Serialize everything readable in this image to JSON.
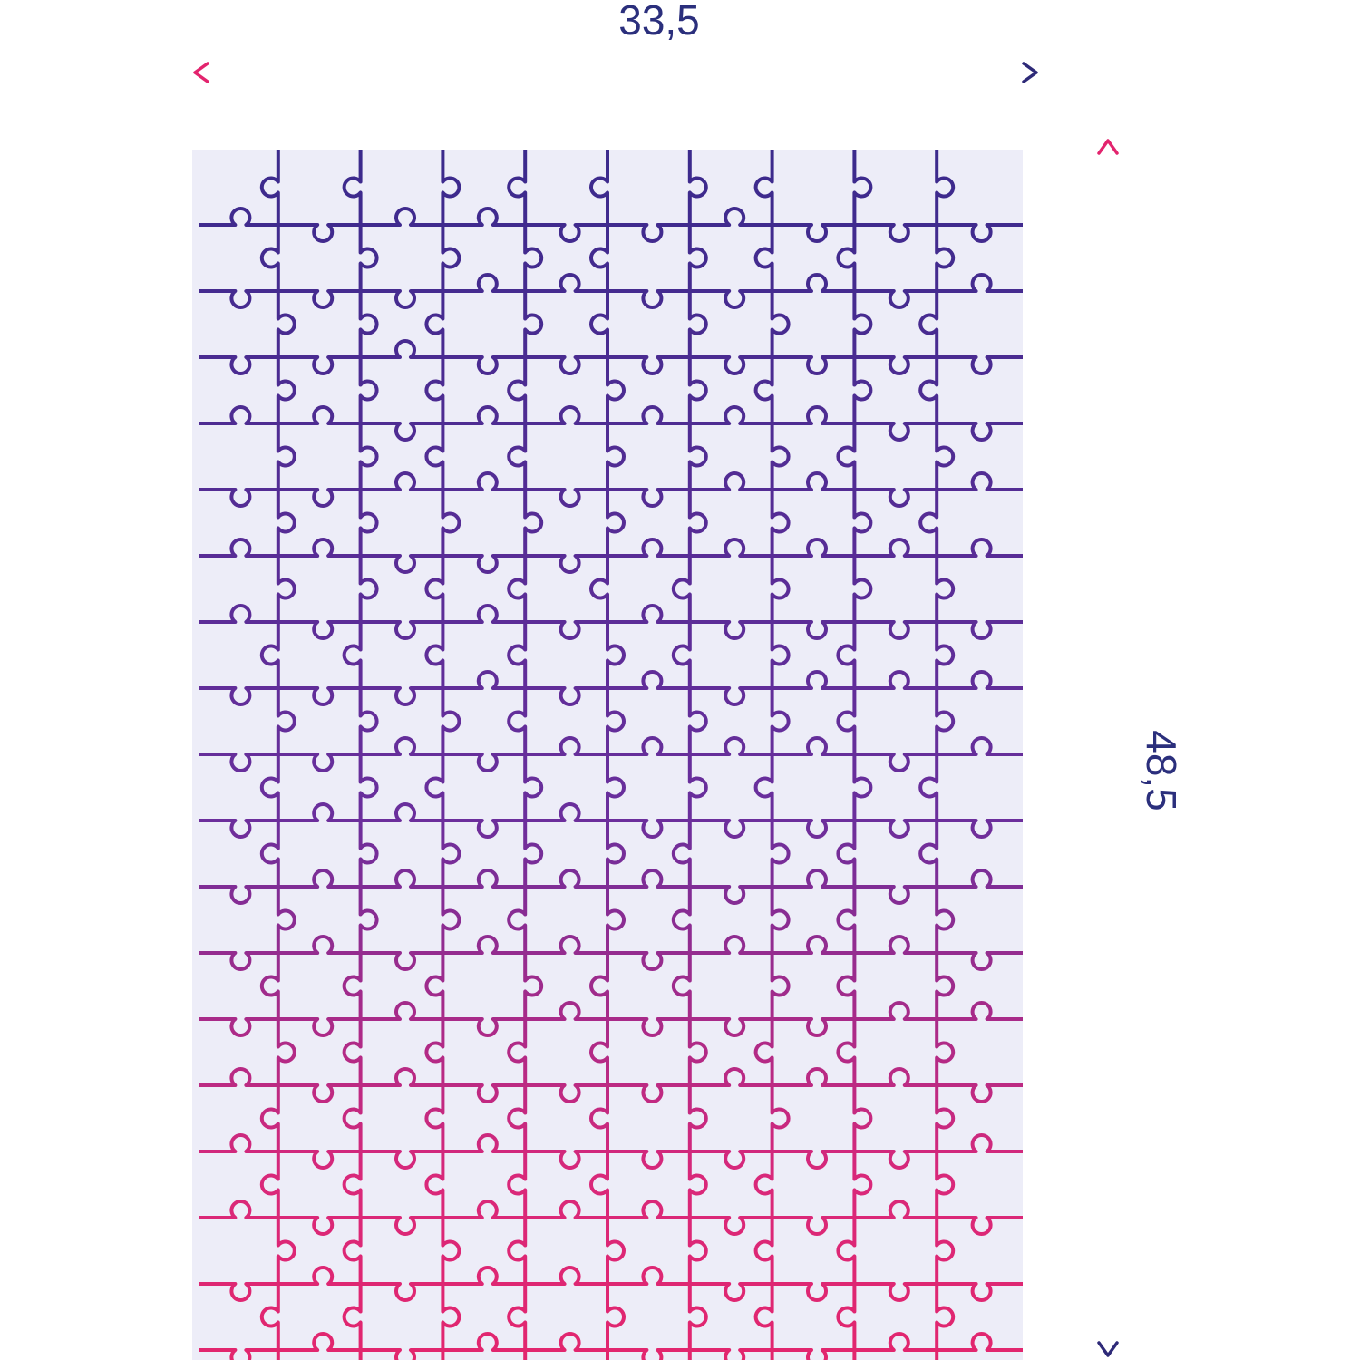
{
  "dimensions": {
    "width": "33,5",
    "height": "48,5"
  }
}
